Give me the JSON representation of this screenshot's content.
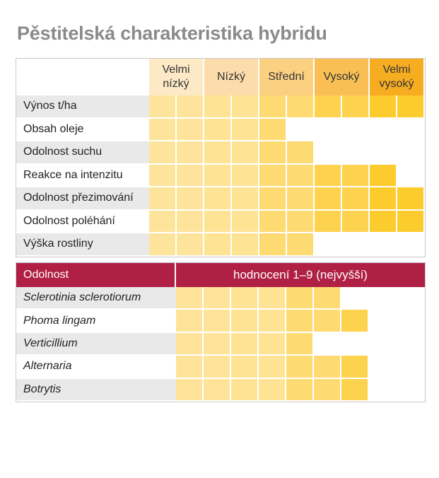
{
  "title": "Pěstitelská charakteristika hybridu",
  "colors": {
    "header": [
      "#fde9c6",
      "#fcdcaa",
      "#fbd081",
      "#f9bf55",
      "#f7ad22"
    ],
    "segments": [
      "#fde49a",
      "#fde49a",
      "#fde393",
      "#fde393",
      "#fdda72",
      "#fdda72",
      "#fcd24f",
      "#fcd24f",
      "#fccb2e",
      "#fccb2e"
    ],
    "resistance_band": "#b02045"
  },
  "chart_data": [
    {
      "type": "bar",
      "columns": [
        "Velmi nízký",
        "Nízký",
        "Střední",
        "Vysoký",
        "Velmi vysoký"
      ],
      "max_value": 10,
      "categories": [
        "Výnos t/ha",
        "Obsah oleje",
        "Odolnost suchu",
        "Reakce na intenzitu",
        "Odolnost přezimování",
        "Odolnost poléhání",
        "Výška rostliny"
      ],
      "values": [
        10,
        5,
        6,
        9,
        10,
        10,
        6
      ]
    },
    {
      "type": "bar",
      "header_label": "Odolnost",
      "scale_label": "hodnocení 1–9 (nejvyšší)",
      "max_value": 9,
      "categories": [
        "Sclerotinia sclerotiorum",
        "Phoma lingam",
        "Verticillium",
        "Alternaria",
        "Botrytis"
      ],
      "values": [
        6,
        7,
        5,
        7,
        7
      ]
    }
  ]
}
